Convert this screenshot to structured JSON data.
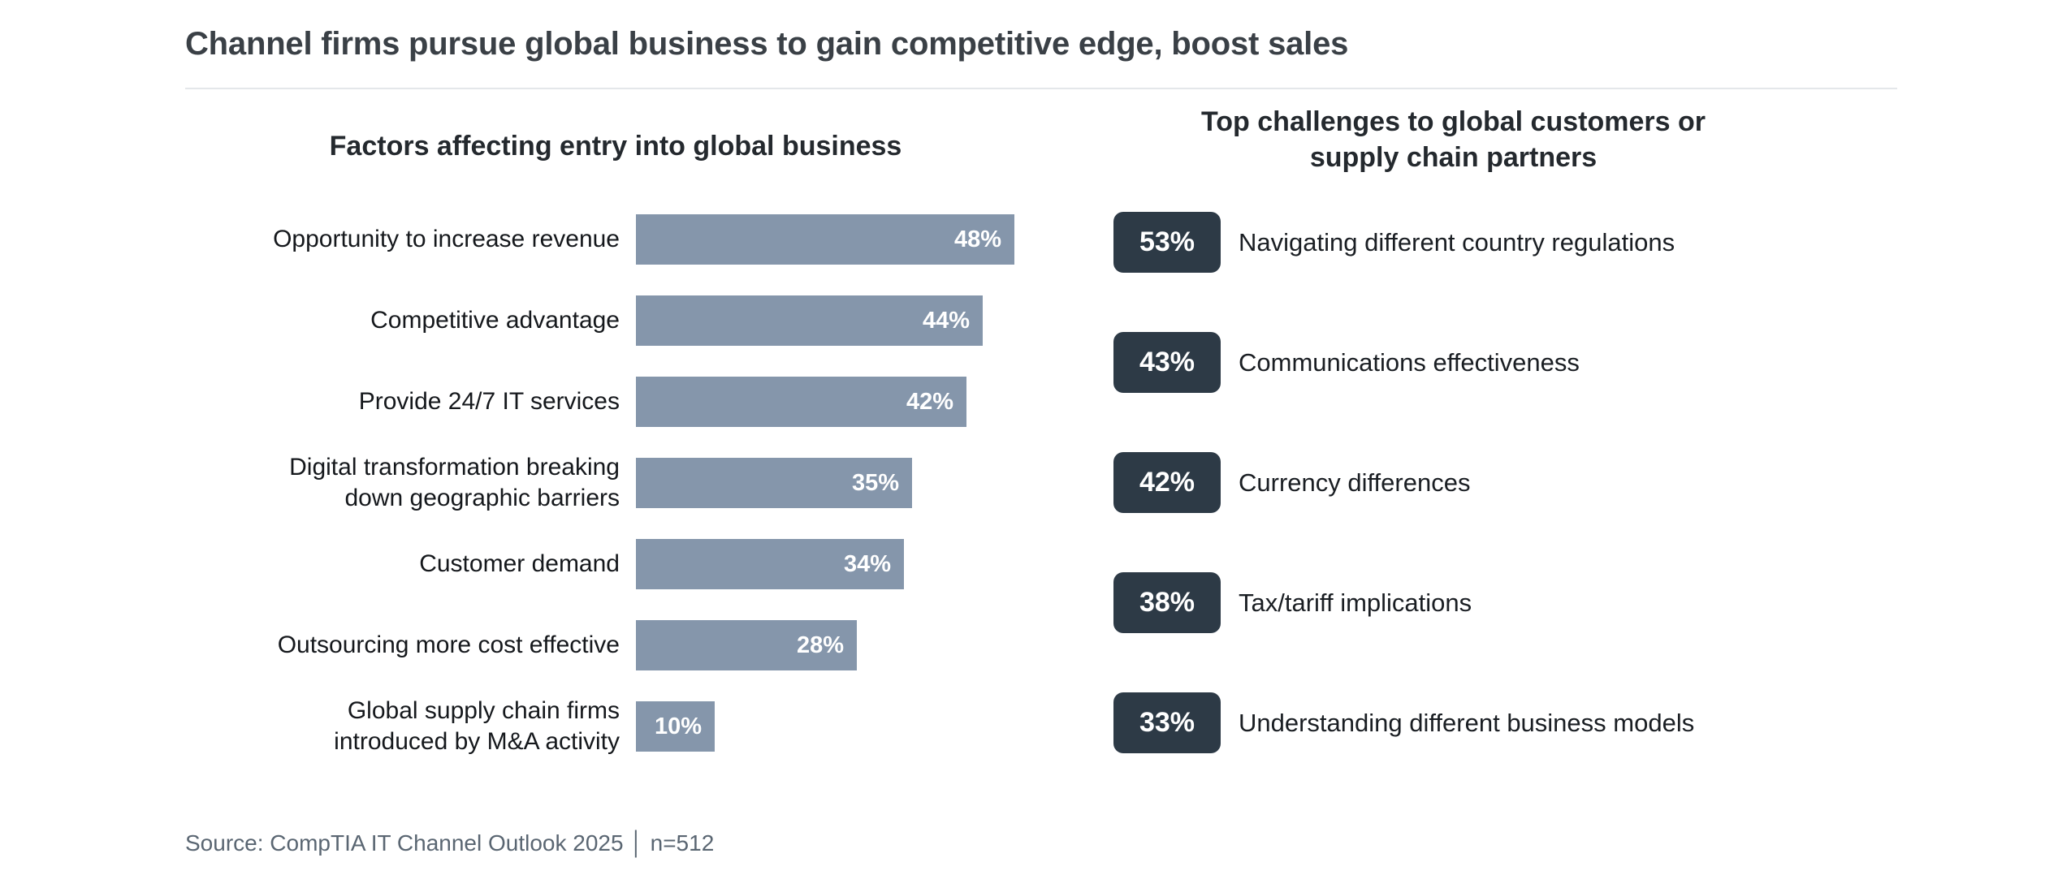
{
  "page": {
    "title": "Channel firms pursue global business to gain competitive edge, boost sales",
    "source": "Source: CompTIA IT Channel Outlook 2025 │ n=512"
  },
  "colors": {
    "bar": "#8596ab",
    "badge": "#2d3a46",
    "title_text": "#3a4046",
    "source_text": "#5a6672",
    "background": "#ffffff"
  },
  "chart_data": [
    {
      "type": "bar",
      "orientation": "horizontal",
      "title": "Factors affecting entry into global business",
      "unit": "percent",
      "xlim": [
        0,
        50
      ],
      "grid": false,
      "legend": false,
      "data_label_position": "inside-end",
      "bar_color": "#8596ab",
      "categories": [
        "Opportunity to increase revenue",
        "Competitive advantage",
        "Provide 24/7 IT services",
        "Digital transformation breaking\ndown geographic barriers",
        "Customer demand",
        "Outsourcing more cost effective",
        "Global supply chain firms\nintroduced by M&A activity"
      ],
      "values": [
        48,
        44,
        42,
        35,
        34,
        28,
        10
      ],
      "value_labels": [
        "48%",
        "44%",
        "42%",
        "35%",
        "34%",
        "28%",
        "10%"
      ]
    },
    {
      "type": "table",
      "title": "Top challenges to global customers or supply chain partners",
      "badge_color": "#2d3a46",
      "items": [
        {
          "value": "53%",
          "label": "Navigating different country regulations"
        },
        {
          "value": "43%",
          "label": "Communications effectiveness"
        },
        {
          "value": "42%",
          "label": "Currency differences"
        },
        {
          "value": "38%",
          "label": "Tax/tariff implications"
        },
        {
          "value": "33%",
          "label": "Understanding different business models"
        }
      ]
    }
  ]
}
